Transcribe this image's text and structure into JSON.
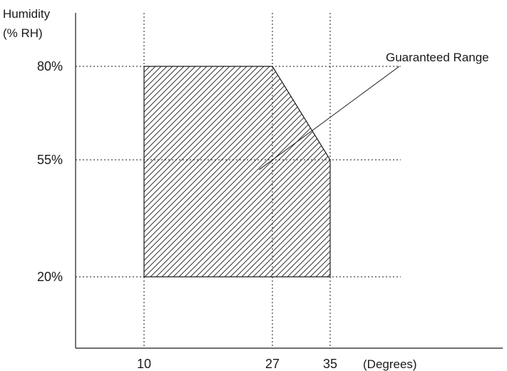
{
  "chart_data": {
    "type": "area",
    "title": "",
    "ylabel_lines": [
      "Humidity",
      "(% RH)"
    ],
    "xlabel": "(Degrees)",
    "x_ticks": [
      {
        "value": 10,
        "label": "10"
      },
      {
        "value": 27,
        "label": "27"
      },
      {
        "value": 35,
        "label": "35"
      }
    ],
    "y_ticks": [
      {
        "value": 20,
        "label": "20%"
      },
      {
        "value": 55,
        "label": "55%"
      },
      {
        "value": 80,
        "label": "80%"
      }
    ],
    "xlim": [
      0,
      45
    ],
    "ylim": [
      0,
      100
    ],
    "grid": true,
    "region": {
      "name": "Guaranteed Range",
      "fill": "hatched",
      "points": [
        {
          "x": 10,
          "y": 20
        },
        {
          "x": 10,
          "y": 80
        },
        {
          "x": 27,
          "y": 80
        },
        {
          "x": 35,
          "y": 55
        },
        {
          "x": 35,
          "y": 20
        }
      ]
    },
    "annotation": {
      "text": "Guaranteed Range",
      "points_to": {
        "x": 26,
        "y": 60
      }
    }
  }
}
